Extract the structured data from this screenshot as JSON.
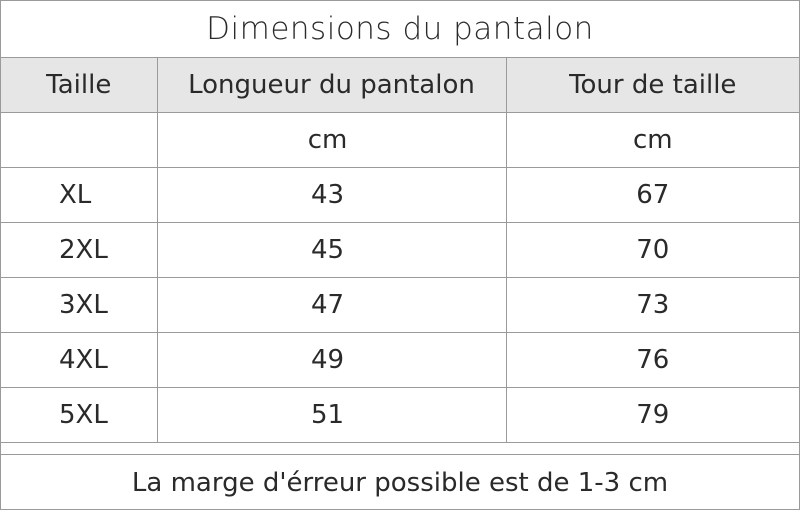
{
  "title": "Dimensions du pantalon",
  "table": {
    "headers": {
      "size": "Taille",
      "length": "Longueur du pantalon",
      "waist": "Tour de taille"
    },
    "units": {
      "size": "",
      "length": "cm",
      "waist": "cm"
    },
    "rows": [
      {
        "size": "XL",
        "length": "43",
        "waist": "67"
      },
      {
        "size": "2XL",
        "length": "45",
        "waist": "70"
      },
      {
        "size": "3XL",
        "length": "47",
        "waist": "73"
      },
      {
        "size": "4XL",
        "length": "49",
        "waist": "76"
      },
      {
        "size": "5XL",
        "length": "51",
        "waist": "79"
      }
    ]
  },
  "footer": "La marge d'érreur possible est de 1-3 cm"
}
